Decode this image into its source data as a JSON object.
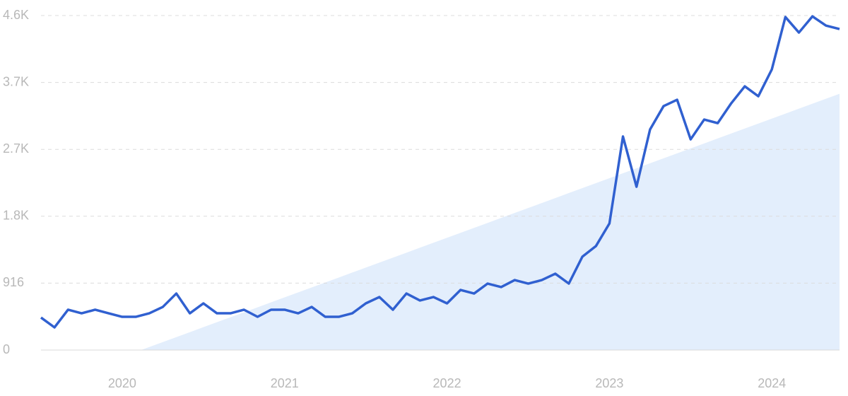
{
  "chart_data": {
    "type": "line",
    "categories": [
      null,
      null,
      null,
      null,
      null,
      null,
      "2020",
      null,
      null,
      null,
      null,
      null,
      null,
      null,
      null,
      null,
      null,
      null,
      "2021",
      null,
      null,
      null,
      null,
      null,
      null,
      null,
      null,
      null,
      null,
      null,
      "2022",
      null,
      null,
      null,
      null,
      null,
      null,
      null,
      null,
      null,
      null,
      null,
      "2023",
      null,
      null,
      null,
      null,
      null,
      null,
      null,
      null,
      null,
      null,
      null,
      "2024",
      null,
      null,
      null,
      null,
      null
    ],
    "series": [
      {
        "color": "#3060d0",
        "values": [
          445,
          310,
          552,
          503,
          552,
          503,
          455,
          455,
          503,
          590,
          774,
          503,
          639,
          503,
          503,
          552,
          455,
          552,
          552,
          503,
          590,
          455,
          455,
          503,
          639,
          726,
          552,
          774,
          678,
          726,
          639,
          823,
          774,
          910,
          862,
          958,
          910,
          958,
          1045,
          910,
          1278,
          1423,
          1733,
          2924,
          2236,
          3020,
          3340,
          3427,
          2885,
          3156,
          3107,
          3379,
          3611,
          3475,
          3843,
          4560,
          4347,
          4569,
          4443,
          4395
        ]
      }
    ],
    "trend": {
      "color": "#e3eefc",
      "values": [
        null,
        null,
        null,
        null,
        null,
        null,
        null,
        null,
        41,
        109,
        177,
        245,
        313,
        381,
        449,
        517,
        585,
        653,
        721,
        789,
        857,
        925,
        993,
        1061,
        1129,
        1197,
        1265,
        1333,
        1401,
        1469,
        1537,
        1605,
        1673,
        1741,
        1809,
        1877,
        1945,
        2013,
        2081,
        2149,
        2217,
        2285,
        2353,
        2421,
        2489,
        2557,
        2625,
        2693,
        2761,
        2829,
        2897,
        2965,
        3033,
        3101,
        3169,
        3237,
        3305,
        3373,
        3441,
        3509
      ]
    },
    "ylim": [
      0,
      4580
    ],
    "yticks": [
      0,
      916,
      {
        "value": 1832,
        "label": "1.8K"
      },
      {
        "value": 2748,
        "label": "2.7K"
      },
      {
        "value": 3664,
        "label": "3.7K"
      },
      {
        "value": 4580,
        "label": "4.6K"
      }
    ],
    "grid": true
  }
}
